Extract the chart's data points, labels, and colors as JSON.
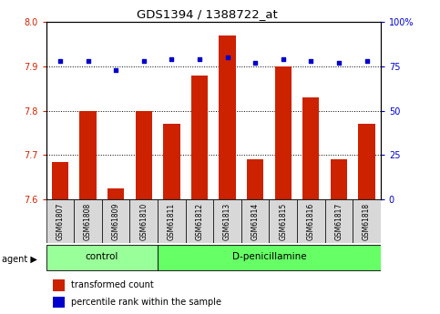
{
  "title": "GDS1394 / 1388722_at",
  "samples": [
    "GSM61807",
    "GSM61808",
    "GSM61809",
    "GSM61810",
    "GSM61811",
    "GSM61812",
    "GSM61813",
    "GSM61814",
    "GSM61815",
    "GSM61816",
    "GSM61817",
    "GSM61818"
  ],
  "red_values": [
    7.685,
    7.8,
    7.625,
    7.8,
    7.77,
    7.88,
    7.97,
    7.69,
    7.9,
    7.83,
    7.69,
    7.77
  ],
  "blue_values": [
    78,
    78,
    73,
    78,
    79,
    79,
    80,
    77,
    79,
    78,
    77,
    78
  ],
  "ylim_left": [
    7.6,
    8.0
  ],
  "ylim_right": [
    0,
    100
  ],
  "yticks_left": [
    7.6,
    7.7,
    7.8,
    7.9,
    8.0
  ],
  "yticks_right": [
    0,
    25,
    50,
    75,
    100
  ],
  "ytick_labels_right": [
    "0",
    "25",
    "50",
    "75",
    "100%"
  ],
  "group_control_idx": [
    0,
    1,
    2,
    3
  ],
  "group_dpen_idx": [
    4,
    5,
    6,
    7,
    8,
    9,
    10,
    11
  ],
  "bar_color": "#CC2200",
  "dot_color": "#0000CC",
  "control_color": "#99FF99",
  "dpen_color": "#66FF66",
  "label_area_bg": "#D8D8D8",
  "bar_width": 0.6,
  "baseline": 7.6
}
